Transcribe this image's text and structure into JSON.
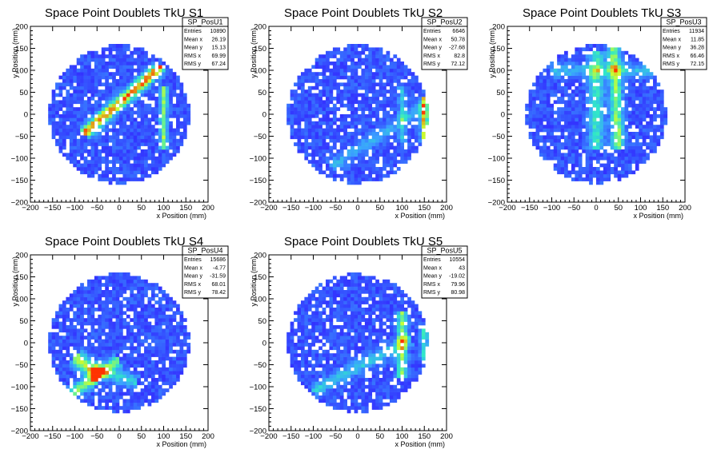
{
  "chart_data": [
    {
      "type": "heatmap",
      "title": "Space Point Doublets TkU S1",
      "xlabel": "x Position (mm)",
      "ylabel": "y Position (mm)",
      "xlim": [
        -200,
        200
      ],
      "ylim": [
        -200,
        200
      ],
      "xticks": [
        "−200",
        "−150",
        "−100",
        "−50",
        "0",
        "50",
        "100",
        "150",
        "200"
      ],
      "yticks": [
        "200",
        "150",
        "100",
        "50",
        "0",
        "−50",
        "−100",
        "−150",
        "−200"
      ],
      "stats": {
        "name": "SP_PosU1",
        "rows": [
          {
            "label": "Entries",
            "value": "10890"
          },
          {
            "label": "Mean x",
            "value": "26.19"
          },
          {
            "label": "Mean y",
            "value": "15.13"
          },
          {
            "label": "RMS x",
            "value": "69.99"
          },
          {
            "label": "RMS y",
            "value": "67.24"
          }
        ]
      },
      "band_description": "diagonal high-density band from (-80,-40) to (90,110), vertical hot strip at x≈100"
    },
    {
      "type": "heatmap",
      "title": "Space Point Doublets TkU S2",
      "xlabel": "x Position (mm)",
      "ylabel": "y Position (mm)",
      "xlim": [
        -200,
        200
      ],
      "ylim": [
        -200,
        200
      ],
      "xticks": [
        "−200",
        "−150",
        "−100",
        "−50",
        "0",
        "50",
        "100",
        "150",
        "200"
      ],
      "yticks": [
        "200",
        "150",
        "100",
        "50",
        "0",
        "−50",
        "−100",
        "−150",
        "−200"
      ],
      "stats": {
        "name": "SP_PosU2",
        "rows": [
          {
            "label": "Entries",
            "value": "6646"
          },
          {
            "label": "Mean x",
            "value": "50.78"
          },
          {
            "label": "Mean y",
            "value": "-27.68"
          },
          {
            "label": "RMS x",
            "value": "82.8"
          },
          {
            "label": "RMS y",
            "value": "72.12"
          }
        ]
      },
      "band_description": "vertical hot strip near x≈150, faint diagonal band"
    },
    {
      "type": "heatmap",
      "title": "Space Point Doublets TkU S3",
      "xlabel": "x Position (mm)",
      "ylabel": "y Position (mm)",
      "xlim": [
        -200,
        200
      ],
      "ylim": [
        -200,
        200
      ],
      "xticks": [
        "−200",
        "−150",
        "−100",
        "−50",
        "0",
        "50",
        "100",
        "150",
        "200"
      ],
      "yticks": [
        "200",
        "150",
        "100",
        "50",
        "0",
        "−50",
        "−100",
        "−150",
        "−200"
      ],
      "stats": {
        "name": "SP_PosU3",
        "rows": [
          {
            "label": "Entries",
            "value": "11934"
          },
          {
            "label": "Mean x",
            "value": "11.85"
          },
          {
            "label": "Mean y",
            "value": "36.28"
          },
          {
            "label": "RMS x",
            "value": "66.46"
          },
          {
            "label": "RMS y",
            "value": "72.15"
          }
        ]
      },
      "band_description": "vertical dense strips around x≈0 to 50 and horizontal band at y≈100"
    },
    {
      "type": "heatmap",
      "title": "Space Point Doublets TkU S4",
      "xlabel": "x Position (mm)",
      "ylabel": "y Position (mm)",
      "xlim": [
        -200,
        200
      ],
      "ylim": [
        -200,
        200
      ],
      "xticks": [
        "−200",
        "−150",
        "−100",
        "−50",
        "0",
        "50",
        "100",
        "150",
        "200"
      ],
      "yticks": [
        "200",
        "150",
        "100",
        "50",
        "0",
        "−50",
        "−100",
        "−150",
        "−200"
      ],
      "stats": {
        "name": "SP_PosU4",
        "rows": [
          {
            "label": "Entries",
            "value": "15686"
          },
          {
            "label": "Mean x",
            "value": "-4.77"
          },
          {
            "label": "Mean y",
            "value": "-31.59"
          },
          {
            "label": "RMS x",
            "value": "68.01"
          },
          {
            "label": "RMS y",
            "value": "78.42"
          }
        ]
      },
      "band_description": "V-shaped dense region in lower half converging near (-50,-80)"
    },
    {
      "type": "heatmap",
      "title": "Space Point Doublets TkU S5",
      "xlabel": "x Position (mm)",
      "ylabel": "y Position (mm)",
      "xlim": [
        -200,
        200
      ],
      "ylim": [
        -200,
        200
      ],
      "xticks": [
        "−200",
        "−150",
        "−100",
        "−50",
        "0",
        "50",
        "100",
        "150",
        "200"
      ],
      "yticks": [
        "200",
        "150",
        "100",
        "50",
        "0",
        "−50",
        "−100",
        "−150",
        "−200"
      ],
      "stats": {
        "name": "SP_PosU5",
        "rows": [
          {
            "label": "Entries",
            "value": "10554"
          },
          {
            "label": "Mean x",
            "value": "43"
          },
          {
            "label": "Mean y",
            "value": "-19.02"
          },
          {
            "label": "RMS x",
            "value": "79.96"
          },
          {
            "label": "RMS y",
            "value": "80.98"
          }
        ]
      },
      "band_description": "vertical hot strip near x≈100 and diagonal band toward lower-left"
    }
  ],
  "colors": {
    "low": "#3333ff",
    "mid_low": "#3aa0ff",
    "mid": "#2fe8c8",
    "mid_high": "#c8ff33",
    "high": "#ff3300",
    "frame": "#000000"
  }
}
